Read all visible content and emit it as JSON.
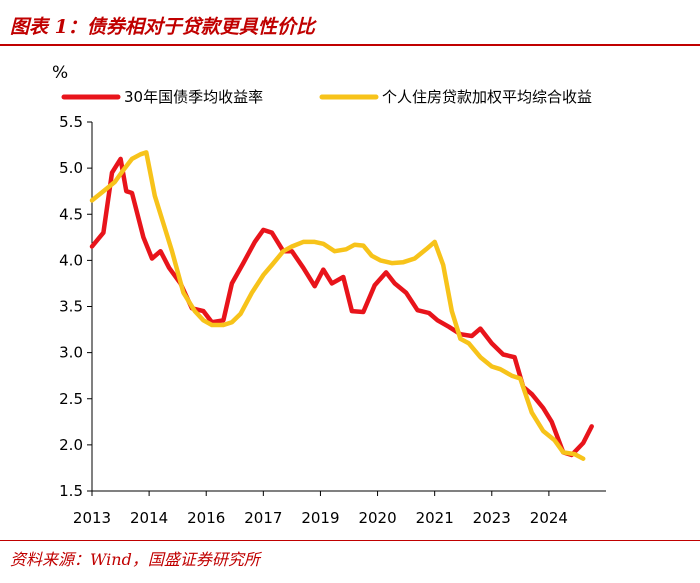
{
  "header": {
    "title": "图表 1：债券相对于贷款更具性价比",
    "source": "资料来源：Wind，国盛证券研究所"
  },
  "chart_data": {
    "type": "line",
    "title": "债券相对于贷款更具性价比",
    "ylabel": "%",
    "xlabel": "",
    "ylim": [
      1.5,
      5.5
    ],
    "yticks": [
      "5.5",
      "5.0",
      "4.5",
      "4.0",
      "3.5",
      "3.0",
      "2.5",
      "2.0",
      "1.5"
    ],
    "ytick_values": [
      5.5,
      5.0,
      4.5,
      4.0,
      3.5,
      3.0,
      2.5,
      2.0,
      1.5
    ],
    "xlim": [
      0,
      18
    ],
    "xtick_labels": [
      "2013",
      "2014",
      "2016",
      "2017",
      "2019",
      "2020",
      "2021",
      "2023",
      "2024"
    ],
    "xtick_values": [
      0,
      2,
      4,
      6,
      8,
      10,
      12,
      14,
      16
    ],
    "legend_position": "top",
    "series": [
      {
        "name": "30年国债季均收益率",
        "color": "#e8141b",
        "x": [
          0,
          0.4,
          0.7,
          1.0,
          1.2,
          1.4,
          1.8,
          2.1,
          2.4,
          2.7,
          3.1,
          3.5,
          3.9,
          4.2,
          4.6,
          4.9,
          5.3,
          5.7,
          6.0,
          6.3,
          6.7,
          7.0,
          7.4,
          7.8,
          8.1,
          8.4,
          8.8,
          9.1,
          9.5,
          9.9,
          10.3,
          10.6,
          11.0,
          11.4,
          11.8,
          12.1,
          12.5,
          12.9,
          13.3,
          13.6,
          14.0,
          14.4,
          14.8,
          15.1,
          15.4,
          15.8,
          16.1,
          16.5,
          16.8,
          17.2,
          17.5
        ],
        "values": [
          4.15,
          4.3,
          4.95,
          5.1,
          4.75,
          4.73,
          4.25,
          4.02,
          4.1,
          3.92,
          3.75,
          3.48,
          3.45,
          3.33,
          3.35,
          3.75,
          3.97,
          4.2,
          4.33,
          4.3,
          4.1,
          4.1,
          3.92,
          3.72,
          3.9,
          3.75,
          3.82,
          3.45,
          3.44,
          3.73,
          3.87,
          3.75,
          3.65,
          3.46,
          3.43,
          3.35,
          3.28,
          3.2,
          3.18,
          3.26,
          3.1,
          2.98,
          2.95,
          2.63,
          2.55,
          2.4,
          2.25,
          1.92,
          1.89,
          2.02,
          2.2
        ]
      },
      {
        "name": "个人住房贷款加权平均综合收益",
        "color": "#f7c31a",
        "x": [
          0,
          0.4,
          0.8,
          1.1,
          1.4,
          1.7,
          1.9,
          2.2,
          2.5,
          2.8,
          3.2,
          3.6,
          3.9,
          4.2,
          4.6,
          4.9,
          5.2,
          5.6,
          6.0,
          6.3,
          6.7,
          7.0,
          7.4,
          7.8,
          8.1,
          8.5,
          8.9,
          9.2,
          9.5,
          9.8,
          10.1,
          10.5,
          10.9,
          11.3,
          11.7,
          12.0,
          12.3,
          12.6,
          12.9,
          13.2,
          13.6,
          14.0,
          14.3,
          14.7,
          15.0,
          15.4,
          15.8,
          16.2,
          16.5,
          16.9,
          17.2
        ],
        "values": [
          4.65,
          4.75,
          4.85,
          4.98,
          5.1,
          5.15,
          5.17,
          4.7,
          4.4,
          4.1,
          3.65,
          3.45,
          3.35,
          3.3,
          3.3,
          3.33,
          3.42,
          3.65,
          3.84,
          3.95,
          4.1,
          4.15,
          4.2,
          4.2,
          4.18,
          4.1,
          4.12,
          4.17,
          4.16,
          4.05,
          4.0,
          3.97,
          3.98,
          4.02,
          4.12,
          4.2,
          3.95,
          3.45,
          3.15,
          3.1,
          2.95,
          2.85,
          2.82,
          2.75,
          2.72,
          2.35,
          2.15,
          2.05,
          1.92,
          1.9,
          1.85
        ]
      }
    ]
  }
}
